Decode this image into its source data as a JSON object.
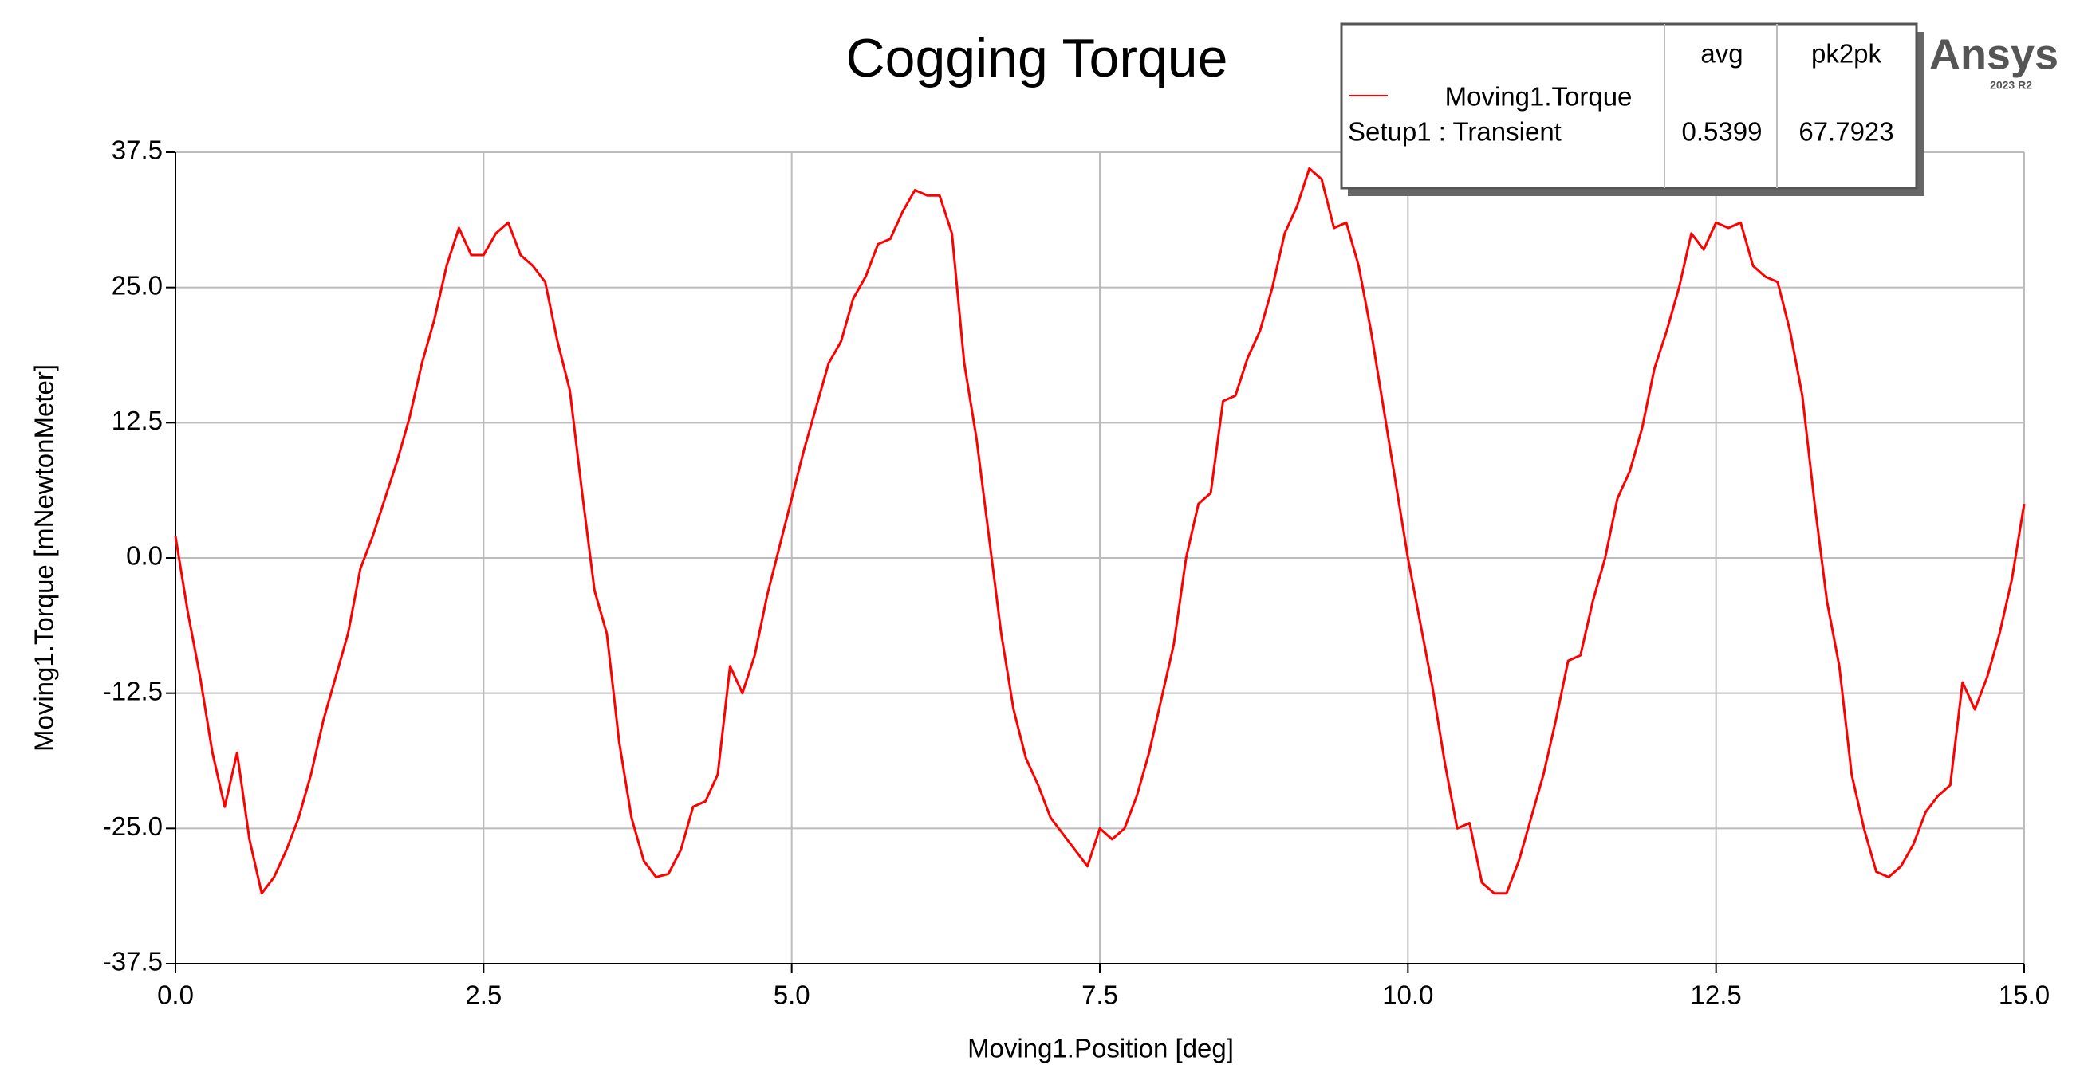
{
  "chart_data": {
    "type": "line",
    "title": "Cogging Torque",
    "x_label": "Moving1.Position [deg]",
    "y_label": "Moving1.Torque [mNewtonMeter]",
    "logo": "Ansys",
    "logo_version": "2023 R2",
    "legend_table": {
      "headers": [
        "avg",
        "pk2pk"
      ],
      "setup": "Setup1 : Transient",
      "avg": 0.5399,
      "pk2pk": 67.7923
    },
    "grid": true,
    "xlim": [
      0,
      15
    ],
    "ylim": [
      -37.5,
      37.5
    ],
    "xticks": [
      {
        "value": 0,
        "label": "0.0"
      },
      2.5,
      {
        "value": 5,
        "label": "5.0"
      },
      7.5,
      {
        "value": 10,
        "label": "10.0"
      },
      12.5,
      {
        "value": 15,
        "label": "15.0"
      }
    ],
    "yticks": [
      -37.5,
      {
        "value": -25,
        "label": "-25.0"
      },
      -12.5,
      {
        "value": 0,
        "label": "0.0"
      },
      12.5,
      {
        "value": 25,
        "label": "25.0"
      },
      37.5
    ],
    "x": [
      0,
      0.1,
      0.2,
      0.3,
      0.4,
      0.5,
      0.6,
      0.7,
      0.8,
      0.9,
      1,
      1.1,
      1.2,
      1.3,
      1.4,
      1.5,
      1.6,
      1.7,
      1.8,
      1.9,
      2,
      2.1,
      2.2,
      2.3,
      2.4,
      2.5,
      2.6,
      2.7,
      2.8,
      2.9,
      3,
      3.1,
      3.2,
      3.3,
      3.4,
      3.5,
      3.6,
      3.7,
      3.8,
      3.9,
      4,
      4.1,
      4.2,
      4.3,
      4.4,
      4.5,
      4.6,
      4.7,
      4.8,
      4.9,
      5,
      5.1,
      5.2,
      5.3,
      5.4,
      5.5,
      5.6,
      5.7,
      5.8,
      5.9,
      6,
      6.1,
      6.2,
      6.3,
      6.4,
      6.5,
      6.6,
      6.7,
      6.8,
      6.9,
      7,
      7.1,
      7.2,
      7.3,
      7.4,
      7.5,
      7.6,
      7.7,
      7.8,
      7.9,
      8,
      8.1,
      8.2,
      8.3,
      8.4,
      8.5,
      8.6,
      8.7,
      8.8,
      8.9,
      9,
      9.1,
      9.2,
      9.3,
      9.4,
      9.5,
      9.6,
      9.7,
      9.8,
      9.9,
      10,
      10.1,
      10.2,
      10.3,
      10.4,
      10.5,
      10.6,
      10.7,
      10.8,
      10.9,
      11,
      11.1,
      11.2,
      11.3,
      11.4,
      11.5,
      11.6,
      11.7,
      11.8,
      11.9,
      12,
      12.1,
      12.2,
      12.3,
      12.4,
      12.5,
      12.6,
      12.7,
      12.8,
      12.9,
      13,
      13.1,
      13.2,
      13.3,
      13.4,
      13.5,
      13.6,
      13.7,
      13.8,
      13.9,
      14,
      14.1,
      14.2,
      14.3,
      14.4,
      14.5,
      14.6,
      14.7,
      14.8,
      14.9,
      15
    ],
    "series": [
      {
        "name": "Moving1.Torque",
        "color": "#ff0000",
        "values": [
          2,
          -5,
          -11,
          -18,
          -23,
          -18,
          -26,
          -31,
          -29.5,
          -27,
          -24,
          -20,
          -15,
          -11,
          -7,
          -1,
          2,
          5.5,
          9,
          13,
          18,
          22,
          27,
          30.5,
          28,
          28,
          30,
          31,
          28,
          27,
          25.5,
          20,
          15.5,
          6,
          -3,
          -7,
          -17,
          -24,
          -28,
          -29.5,
          -29.2,
          -27,
          -23,
          -22.5,
          -20,
          -10,
          -12.5,
          -9,
          -3.5,
          1,
          5.5,
          10,
          14,
          18,
          20,
          24,
          26,
          29,
          29.5,
          32,
          34,
          33.5,
          33.5,
          30,
          18,
          11,
          2,
          -7,
          -14,
          -18.5,
          -21,
          -24,
          -25.5,
          -27,
          -28.5,
          -25,
          -26,
          -25,
          -22,
          -18,
          -13,
          -8,
          0,
          5,
          6,
          14.5,
          15,
          18.5,
          21,
          25,
          30,
          32.5,
          36,
          35,
          30.5,
          31,
          27,
          21,
          14,
          7,
          0,
          -6,
          -12,
          -19,
          -25,
          -24.5,
          -30,
          -31,
          -31,
          -28,
          -24,
          -20,
          -15,
          -9.5,
          -9,
          -4,
          0,
          5.5,
          8,
          12,
          17.5,
          21,
          25,
          30,
          28.5,
          31,
          30.5,
          31,
          27,
          26,
          25.5,
          21,
          15,
          5,
          -4,
          -10,
          -20,
          -25,
          -29,
          -29.5,
          -28.5,
          -26.5,
          -23.5,
          -22,
          -21,
          -11.5,
          -14,
          -11,
          -7,
          -2,
          5
        ]
      }
    ]
  }
}
